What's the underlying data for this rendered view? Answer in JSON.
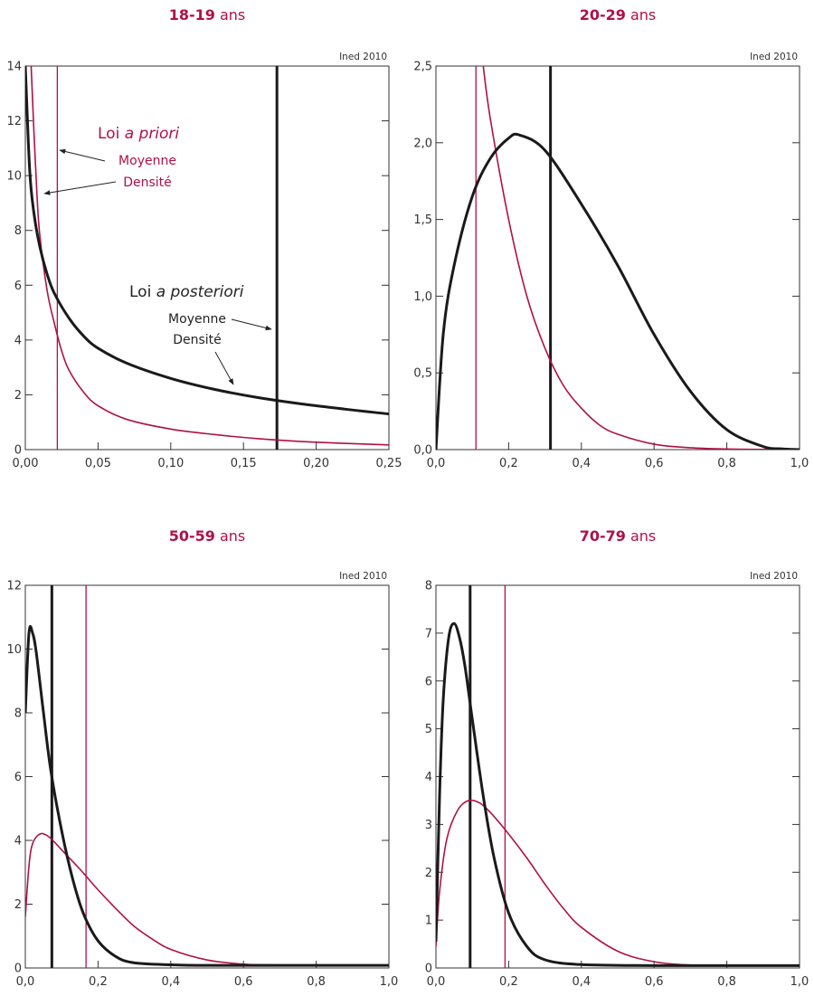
{
  "colors": {
    "prior": "#b0104a",
    "posterior": "#1a1a1a",
    "frame": "#333333"
  },
  "annotations": {
    "prior_title_prefix": "Loi ",
    "prior_title_italic": "a priori",
    "prior_mean": "Moyenne",
    "prior_density": "Densité",
    "posterior_title_prefix": "Loi ",
    "posterior_title_italic": "a posteriori",
    "posterior_mean": "Moyenne",
    "posterior_density": "Densité"
  },
  "chart_data": [
    {
      "type": "line",
      "title_bold": "18-19",
      "title_rest": " ans",
      "credit": "Ined 2010",
      "xlim": [
        0,
        0.25
      ],
      "ylim": [
        0,
        14
      ],
      "x_ticks": [
        "0,00",
        "0,05",
        "0,10",
        "0,15",
        "0,20",
        "0,25"
      ],
      "y_ticks": [
        "0",
        "2",
        "4",
        "6",
        "8",
        "10",
        "12",
        "14"
      ],
      "series": [
        {
          "role": "prior-density",
          "x": [
            0.004,
            0.006,
            0.008,
            0.01,
            0.015,
            0.02,
            0.025,
            0.03,
            0.04,
            0.05,
            0.07,
            0.1,
            0.13,
            0.16,
            0.2,
            0.25
          ],
          "y": [
            14.0,
            11.5,
            9.3,
            7.8,
            5.8,
            4.6,
            3.6,
            2.9,
            2.1,
            1.6,
            1.1,
            0.75,
            0.55,
            0.4,
            0.27,
            0.17
          ]
        },
        {
          "role": "posterior-density",
          "x": [
            0.0,
            0.003,
            0.006,
            0.01,
            0.015,
            0.02,
            0.03,
            0.04,
            0.05,
            0.07,
            0.1,
            0.13,
            0.16,
            0.2,
            0.25
          ],
          "y": [
            14.0,
            10.2,
            8.6,
            7.4,
            6.4,
            5.7,
            4.8,
            4.15,
            3.7,
            3.15,
            2.6,
            2.2,
            1.9,
            1.6,
            1.3
          ]
        }
      ],
      "prior_mean": 0.022,
      "posterior_mean": 0.173
    },
    {
      "type": "line",
      "title_bold": "20-29",
      "title_rest": " ans",
      "credit": "Ined 2010",
      "xlim": [
        0,
        1
      ],
      "ylim": [
        0,
        2.5
      ],
      "x_ticks": [
        "0,0",
        "0,2",
        "0,4",
        "0,6",
        "0,8",
        "1,0"
      ],
      "y_ticks": [
        "0,0",
        "0,5",
        "1,0",
        "1,5",
        "2,0",
        "2,5"
      ],
      "series": [
        {
          "role": "prior-density",
          "x": [
            0.13,
            0.15,
            0.2,
            0.25,
            0.3,
            0.35,
            0.4,
            0.45,
            0.5,
            0.6,
            0.7,
            0.8,
            0.9,
            1.0
          ],
          "y": [
            2.5,
            2.15,
            1.5,
            1.0,
            0.66,
            0.42,
            0.27,
            0.16,
            0.1,
            0.035,
            0.012,
            0.004,
            0.001,
            0.0
          ]
        },
        {
          "role": "posterior-density",
          "x": [
            0.0,
            0.02,
            0.05,
            0.1,
            0.15,
            0.2,
            0.23,
            0.3,
            0.4,
            0.5,
            0.6,
            0.7,
            0.8,
            0.9,
            0.95,
            1.0
          ],
          "y": [
            0.0,
            0.75,
            1.2,
            1.65,
            1.9,
            2.03,
            2.05,
            1.95,
            1.6,
            1.2,
            0.75,
            0.38,
            0.13,
            0.02,
            0.005,
            0.0
          ]
        }
      ],
      "prior_mean": 0.11,
      "posterior_mean": 0.315
    },
    {
      "type": "line",
      "title_bold": "50-59",
      "title_rest": " ans",
      "credit": "Ined 2010",
      "xlim": [
        0,
        1
      ],
      "ylim": [
        0,
        12
      ],
      "x_ticks": [
        "0,0",
        "0,2",
        "0,4",
        "0,6",
        "0,8",
        "1,0"
      ],
      "y_ticks": [
        "0",
        "2",
        "4",
        "6",
        "8",
        "10",
        "12"
      ],
      "series": [
        {
          "role": "prior-density",
          "x": [
            0.0,
            0.01,
            0.02,
            0.04,
            0.06,
            0.08,
            0.1,
            0.15,
            0.2,
            0.25,
            0.3,
            0.35,
            0.4,
            0.5,
            0.6,
            0.7,
            0.8,
            1.0
          ],
          "y": [
            1.6,
            3.2,
            3.9,
            4.2,
            4.15,
            3.95,
            3.7,
            3.1,
            2.45,
            1.85,
            1.3,
            0.9,
            0.58,
            0.25,
            0.12,
            0.09,
            0.08,
            0.08
          ]
        },
        {
          "role": "posterior-density",
          "x": [
            0.0,
            0.01,
            0.02,
            0.03,
            0.05,
            0.07,
            0.1,
            0.13,
            0.16,
            0.2,
            0.25,
            0.3,
            0.4,
            0.5,
            0.7,
            1.0
          ],
          "y": [
            8.0,
            10.5,
            10.5,
            9.9,
            8.0,
            6.2,
            4.3,
            2.8,
            1.7,
            0.85,
            0.35,
            0.16,
            0.1,
            0.08,
            0.08,
            0.08
          ]
        }
      ],
      "prior_mean": 0.167,
      "posterior_mean": 0.073
    },
    {
      "type": "line",
      "title_bold": "70-79",
      "title_rest": " ans",
      "credit": "Ined 2010",
      "xlim": [
        0,
        1
      ],
      "ylim": [
        0,
        8
      ],
      "x_ticks": [
        "0,0",
        "0,2",
        "0,4",
        "0,6",
        "0,8",
        "1,0"
      ],
      "y_ticks": [
        "0",
        "1",
        "2",
        "3",
        "4",
        "5",
        "6",
        "7",
        "8"
      ],
      "series": [
        {
          "role": "prior-density",
          "x": [
            0.0,
            0.01,
            0.03,
            0.06,
            0.09,
            0.12,
            0.15,
            0.2,
            0.25,
            0.3,
            0.35,
            0.4,
            0.5,
            0.6,
            0.7,
            0.8,
            1.0
          ],
          "y": [
            0.45,
            1.6,
            2.7,
            3.3,
            3.5,
            3.45,
            3.25,
            2.8,
            2.3,
            1.75,
            1.25,
            0.85,
            0.35,
            0.13,
            0.06,
            0.05,
            0.05
          ]
        },
        {
          "role": "posterior-density",
          "x": [
            0.0,
            0.01,
            0.02,
            0.035,
            0.05,
            0.065,
            0.08,
            0.1,
            0.13,
            0.16,
            0.2,
            0.25,
            0.3,
            0.4,
            0.6,
            1.0
          ],
          "y": [
            0.55,
            3.6,
            5.6,
            6.9,
            7.2,
            6.9,
            6.3,
            5.2,
            3.6,
            2.3,
            1.15,
            0.45,
            0.17,
            0.07,
            0.05,
            0.05
          ]
        }
      ],
      "prior_mean": 0.19,
      "posterior_mean": 0.094
    }
  ]
}
